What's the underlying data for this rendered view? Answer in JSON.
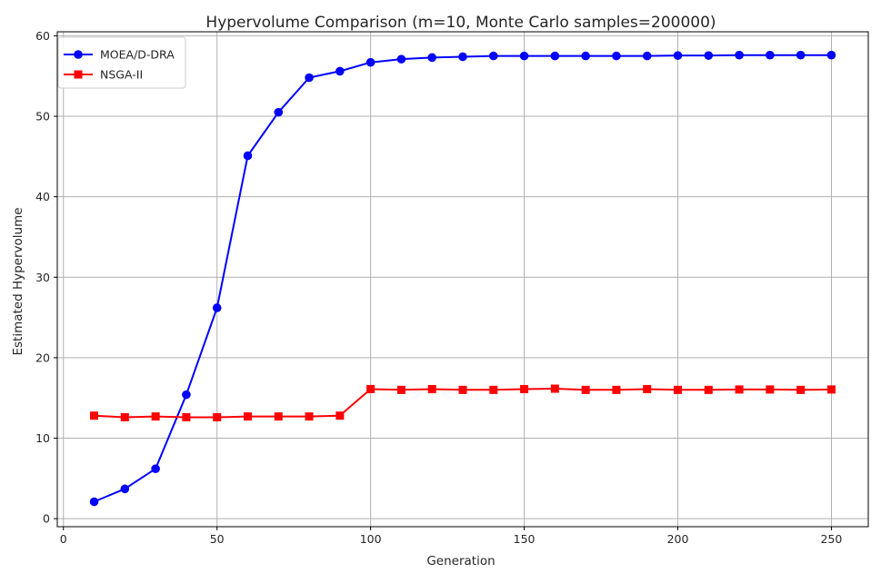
{
  "chart_data": {
    "type": "line",
    "title": "Hypervolume Comparison (m=10, Monte Carlo samples=200000)",
    "xlabel": "Generation",
    "ylabel": "Estimated Hypervolume",
    "xlim": [
      -2,
      262
    ],
    "ylim": [
      -1,
      60.5
    ],
    "xticks": [
      0,
      50,
      100,
      150,
      200,
      250
    ],
    "yticks": [
      0,
      10,
      20,
      30,
      40,
      50,
      60
    ],
    "grid": true,
    "legend_position": "upper-left",
    "x": [
      10,
      20,
      30,
      40,
      50,
      60,
      70,
      80,
      90,
      100,
      110,
      120,
      130,
      140,
      150,
      160,
      170,
      180,
      190,
      200,
      210,
      220,
      230,
      240,
      250
    ],
    "series": [
      {
        "name": "MOEA/D-DRA",
        "color": "#0000ff",
        "marker": "circle",
        "values": [
          2.1,
          3.7,
          6.2,
          15.4,
          26.2,
          45.1,
          50.5,
          54.8,
          55.6,
          56.7,
          57.1,
          57.3,
          57.4,
          57.5,
          57.5,
          57.5,
          57.5,
          57.5,
          57.5,
          57.55,
          57.55,
          57.6,
          57.6,
          57.6,
          57.6
        ]
      },
      {
        "name": "NSGA-II",
        "color": "#ff0000",
        "marker": "square",
        "values": [
          12.8,
          12.6,
          12.7,
          12.6,
          12.6,
          12.7,
          12.7,
          12.7,
          12.8,
          16.1,
          16.0,
          16.1,
          16.0,
          16.0,
          16.1,
          16.15,
          16.0,
          16.0,
          16.1,
          16.0,
          16.0,
          16.05,
          16.05,
          16.0,
          16.05
        ]
      }
    ]
  }
}
